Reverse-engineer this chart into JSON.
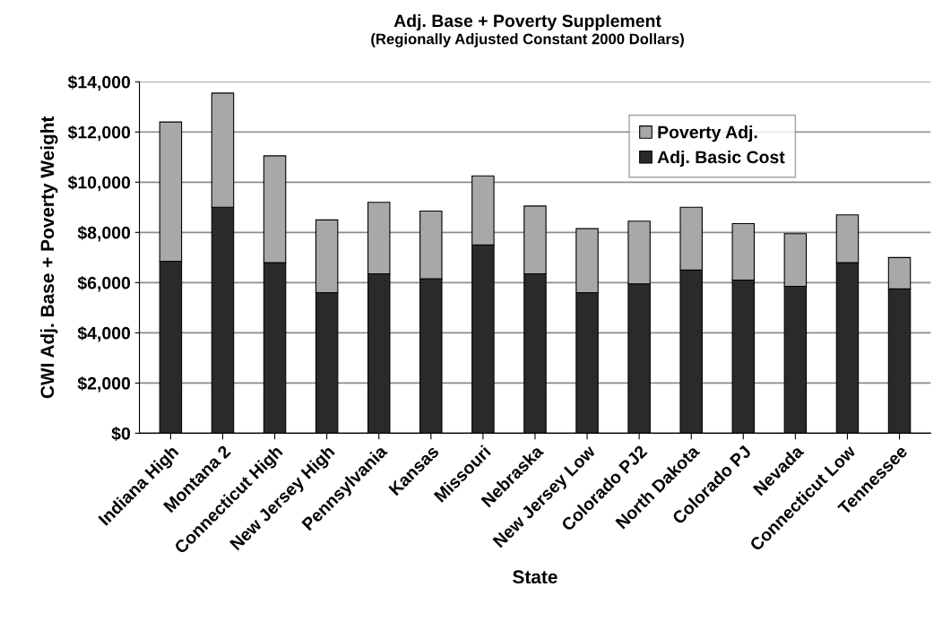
{
  "chart_data": {
    "type": "bar",
    "title": "Adj. Base + Poverty Supplement",
    "subtitle": "(Regionally Adjusted Constant 2000 Dollars)",
    "xlabel": "State",
    "ylabel": "CWI Adj. Base + Poverty Weight",
    "categories": [
      "Indiana High",
      "Montana 2",
      "Connecticut High",
      "New Jersey High",
      "Pennsylvania",
      "Kansas",
      "Missouri",
      "Nebraska",
      "New Jersey Low",
      "Colorado PJ2",
      "North Dakota",
      "Colorado PJ",
      "Nevada",
      "Connecticut Low",
      "Tennessee"
    ],
    "stacked": true,
    "series": [
      {
        "name": "Adj. Basic Cost",
        "color": "#2a2a2a",
        "values": [
          6850,
          9000,
          6800,
          5600,
          6350,
          6150,
          7500,
          6350,
          5600,
          5950,
          6500,
          6100,
          5850,
          6800,
          5750
        ]
      },
      {
        "name": "Poverty Adj.",
        "color": "#a8a8a8",
        "values": [
          5550,
          4550,
          4250,
          2900,
          2850,
          2700,
          2750,
          2700,
          2550,
          2500,
          2500,
          2250,
          2100,
          1900,
          1250
        ]
      }
    ],
    "ylim": [
      0,
      14000
    ],
    "yticks": [
      {
        "value": 0,
        "label": "$0"
      },
      {
        "value": 2000,
        "label": "$2,000"
      },
      {
        "value": 4000,
        "label": "$4,000"
      },
      {
        "value": 6000,
        "label": "$6,000"
      },
      {
        "value": 8000,
        "label": "$8,000"
      },
      {
        "value": 10000,
        "label": "$10,000"
      },
      {
        "value": 12000,
        "label": "$12,000"
      },
      {
        "value": 14000,
        "label": "$14,000"
      }
    ],
    "grid": "y",
    "legend": "top right"
  }
}
